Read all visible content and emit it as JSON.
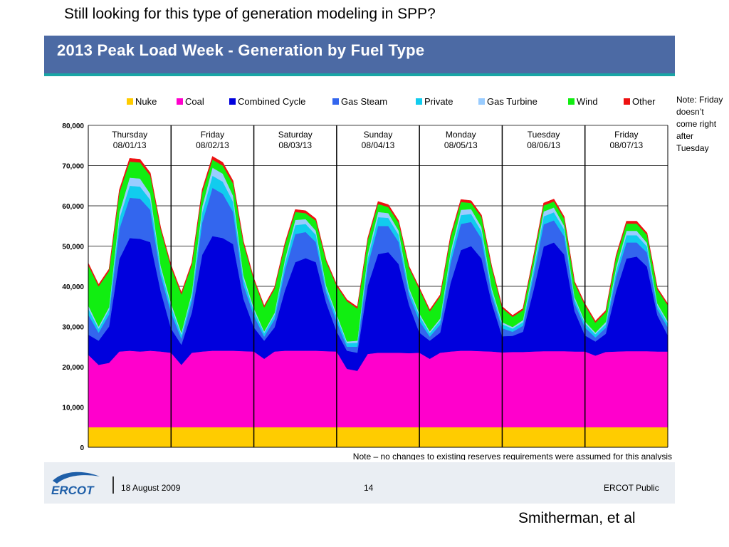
{
  "slide": {
    "heading": "Still looking for this type of generation modeling in SPP?",
    "banner_title": "2013 Peak Load Week - Generation by Fuel Type",
    "side_note": "Note: Friday doesn’t come right after Tuesday",
    "credit": "Smitherman, et al"
  },
  "footer": {
    "logo_text": "ERCOT",
    "date": "18 August 2009",
    "page": "14",
    "classification": "ERCOT Public"
  },
  "colors": {
    "banner": "#4c6aa4",
    "banner_bar": "#19a5a5",
    "footer_bg": "#eaeef3",
    "logo_blue": "#1f5fa8"
  },
  "chart_data": {
    "type": "area",
    "stacked": true,
    "title": "",
    "xlabel": "",
    "ylabel": "",
    "ylim": [
      0,
      80000
    ],
    "yticks": [
      0,
      10000,
      20000,
      30000,
      40000,
      50000,
      60000,
      70000,
      80000
    ],
    "ytick_labels": [
      "0",
      "10,000",
      "20,000",
      "30,000",
      "40,000",
      "50,000",
      "60,000",
      "70,000",
      "80,000"
    ],
    "grid": true,
    "legend_position": "top",
    "note": "Note – no changes to existing reserves requirements were assumed for this analysis",
    "days": [
      {
        "name": "Thursday",
        "date": "08/01/13"
      },
      {
        "name": "Friday",
        "date": "08/02/13"
      },
      {
        "name": "Saturday",
        "date": "08/03/13"
      },
      {
        "name": "Sunday",
        "date": "08/04/13"
      },
      {
        "name": "Monday",
        "date": "08/05/13"
      },
      {
        "name": "Tuesday",
        "date": "08/06/13"
      },
      {
        "name": "Friday",
        "date": "08/07/13"
      }
    ],
    "x_hours": [
      0,
      3,
      6,
      9,
      12,
      15,
      18,
      21
    ],
    "series": [
      {
        "name": "Nuke",
        "color": "#ffcc00",
        "values": [
          [
            5000,
            5000,
            5000,
            5000,
            5000,
            5000,
            5000,
            5000
          ],
          [
            5000,
            5000,
            5000,
            5000,
            5000,
            5000,
            5000,
            5000
          ],
          [
            5000,
            5000,
            5000,
            5000,
            5000,
            5000,
            5000,
            5000
          ],
          [
            5000,
            5000,
            5000,
            5000,
            5000,
            5000,
            5000,
            5000
          ],
          [
            5000,
            5000,
            5000,
            5000,
            5000,
            5000,
            5000,
            5000
          ],
          [
            5000,
            5000,
            5000,
            5000,
            5000,
            5000,
            5000,
            5000
          ],
          [
            5000,
            5000,
            5000,
            5000,
            5000,
            5000,
            5000,
            5000
          ]
        ]
      },
      {
        "name": "Coal",
        "color": "#ff00cc",
        "values": [
          [
            18000,
            15500,
            16000,
            18800,
            19000,
            18800,
            19000,
            18800
          ],
          [
            18500,
            15500,
            18500,
            18800,
            19000,
            19000,
            19000,
            18900
          ],
          [
            18800,
            17000,
            18800,
            19000,
            19000,
            19000,
            19000,
            18900
          ],
          [
            18800,
            14500,
            14000,
            18200,
            18500,
            18500,
            18500,
            18400
          ],
          [
            18500,
            17000,
            18500,
            18800,
            19000,
            19000,
            18900,
            18800
          ],
          [
            18600,
            18700,
            18700,
            18800,
            18900,
            18900,
            18900,
            18800
          ],
          [
            18800,
            17800,
            18700,
            18800,
            18900,
            18900,
            18900,
            18800
          ]
        ]
      },
      {
        "name": "Combined Cycle",
        "color": "#0000dd",
        "values": [
          [
            5000,
            6000,
            9000,
            23000,
            28000,
            28000,
            27000,
            15000
          ],
          [
            6000,
            5000,
            10000,
            24000,
            28500,
            28000,
            26500,
            13000
          ],
          [
            6000,
            4500,
            6000,
            15000,
            22000,
            23000,
            22000,
            12000
          ],
          [
            5000,
            4500,
            4500,
            17000,
            24500,
            25000,
            22000,
            12000
          ],
          [
            5000,
            4500,
            5000,
            17000,
            25000,
            26000,
            23000,
            12000
          ],
          [
            4000,
            4000,
            5000,
            15000,
            26000,
            27000,
            24000,
            10000
          ],
          [
            4000,
            3500,
            4500,
            15000,
            23000,
            23500,
            21000,
            9000
          ]
        ]
      },
      {
        "name": "Gas Steam",
        "color": "#3366ee",
        "values": [
          [
            5000,
            2000,
            3000,
            7500,
            10000,
            10000,
            8000,
            4000
          ],
          [
            4000,
            1500,
            3000,
            8000,
            12000,
            11000,
            8000,
            3500
          ],
          [
            3000,
            1000,
            2000,
            5000,
            7000,
            6500,
            5000,
            2500
          ],
          [
            2500,
            1000,
            1500,
            5000,
            7000,
            6500,
            5500,
            2500
          ],
          [
            3000,
            1000,
            2000,
            5000,
            6500,
            6000,
            5000,
            2000
          ],
          [
            2000,
            1000,
            1500,
            3500,
            5500,
            5500,
            4500,
            2000
          ],
          [
            2000,
            1000,
            1500,
            3500,
            4000,
            3500,
            3500,
            1500
          ]
        ]
      },
      {
        "name": "Private",
        "color": "#11ccee",
        "values": [
          [
            1500,
            1000,
            1200,
            2500,
            3000,
            3000,
            2500,
            1500
          ],
          [
            1500,
            1000,
            1200,
            2500,
            3000,
            3000,
            2500,
            1500
          ],
          [
            1200,
            900,
            1100,
            1800,
            2200,
            2000,
            1800,
            1100
          ],
          [
            1200,
            900,
            1000,
            1800,
            2200,
            2000,
            1800,
            1100
          ],
          [
            1200,
            900,
            1000,
            1800,
            2200,
            2000,
            1800,
            1100
          ],
          [
            1000,
            800,
            900,
            1500,
            2000,
            2000,
            1700,
            1000
          ],
          [
            1000,
            800,
            900,
            1500,
            1800,
            1800,
            1500,
            900
          ]
        ]
      },
      {
        "name": "Gas Turbine",
        "color": "#99ccff",
        "values": [
          [
            800,
            500,
            600,
            1500,
            2000,
            2000,
            1500,
            800
          ],
          [
            800,
            500,
            700,
            1500,
            2000,
            2000,
            1500,
            800
          ],
          [
            600,
            400,
            500,
            1000,
            1300,
            1200,
            1000,
            600
          ],
          [
            600,
            400,
            500,
            1000,
            1300,
            1200,
            1000,
            600
          ],
          [
            600,
            400,
            500,
            1000,
            1300,
            1200,
            1000,
            600
          ],
          [
            500,
            400,
            500,
            900,
            1200,
            1200,
            900,
            500
          ],
          [
            500,
            400,
            500,
            900,
            1100,
            1100,
            900,
            500
          ]
        ]
      },
      {
        "name": "Wind",
        "color": "#11ee11",
        "values": [
          [
            10000,
            10000,
            9000,
            5000,
            4000,
            4000,
            4500,
            9000
          ],
          [
            9000,
            9500,
            7000,
            3500,
            2000,
            2000,
            3000,
            8000
          ],
          [
            7000,
            6000,
            6000,
            3500,
            2000,
            1500,
            2500,
            6000
          ],
          [
            7000,
            10000,
            8000,
            3500,
            2000,
            1500,
            2000,
            5000
          ],
          [
            6000,
            5000,
            5500,
            3500,
            2000,
            1500,
            2500,
            5000
          ],
          [
            3500,
            2500,
            2500,
            2000,
            1500,
            1500,
            1800,
            3500
          ],
          [
            4000,
            2500,
            2500,
            2500,
            1800,
            1800,
            2000,
            3500
          ]
        ]
      },
      {
        "name": "Other",
        "color": "#ee1111",
        "values": [
          [
            500,
            500,
            500,
            700,
            800,
            800,
            700,
            500
          ],
          [
            500,
            500,
            500,
            700,
            800,
            800,
            700,
            500
          ],
          [
            400,
            400,
            400,
            500,
            600,
            600,
            500,
            400
          ],
          [
            400,
            400,
            400,
            500,
            600,
            600,
            500,
            400
          ],
          [
            400,
            400,
            400,
            500,
            600,
            600,
            500,
            400
          ],
          [
            400,
            400,
            400,
            500,
            600,
            600,
            500,
            400
          ],
          [
            400,
            400,
            400,
            500,
            600,
            600,
            500,
            400
          ]
        ]
      }
    ]
  }
}
